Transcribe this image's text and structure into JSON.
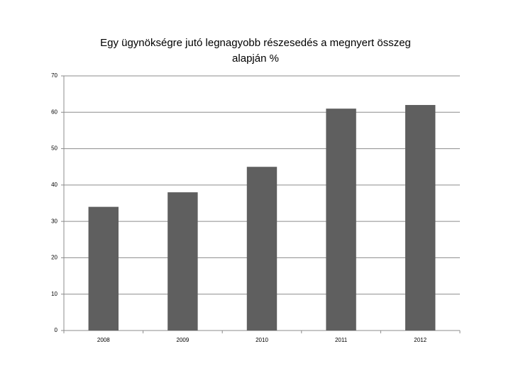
{
  "chart_data": {
    "type": "bar",
    "title": "Egy ügynökségre jutó legnagyobb részesedés a megnyert összeg alapján %",
    "categories": [
      "2008",
      "2009",
      "2010",
      "2011",
      "2012"
    ],
    "values": [
      34,
      38,
      45,
      61,
      62
    ],
    "color": "#5f5f5f",
    "ylim": [
      0,
      70
    ],
    "yticks": [
      0,
      10,
      20,
      30,
      40,
      50,
      60,
      70
    ],
    "grid": true
  }
}
